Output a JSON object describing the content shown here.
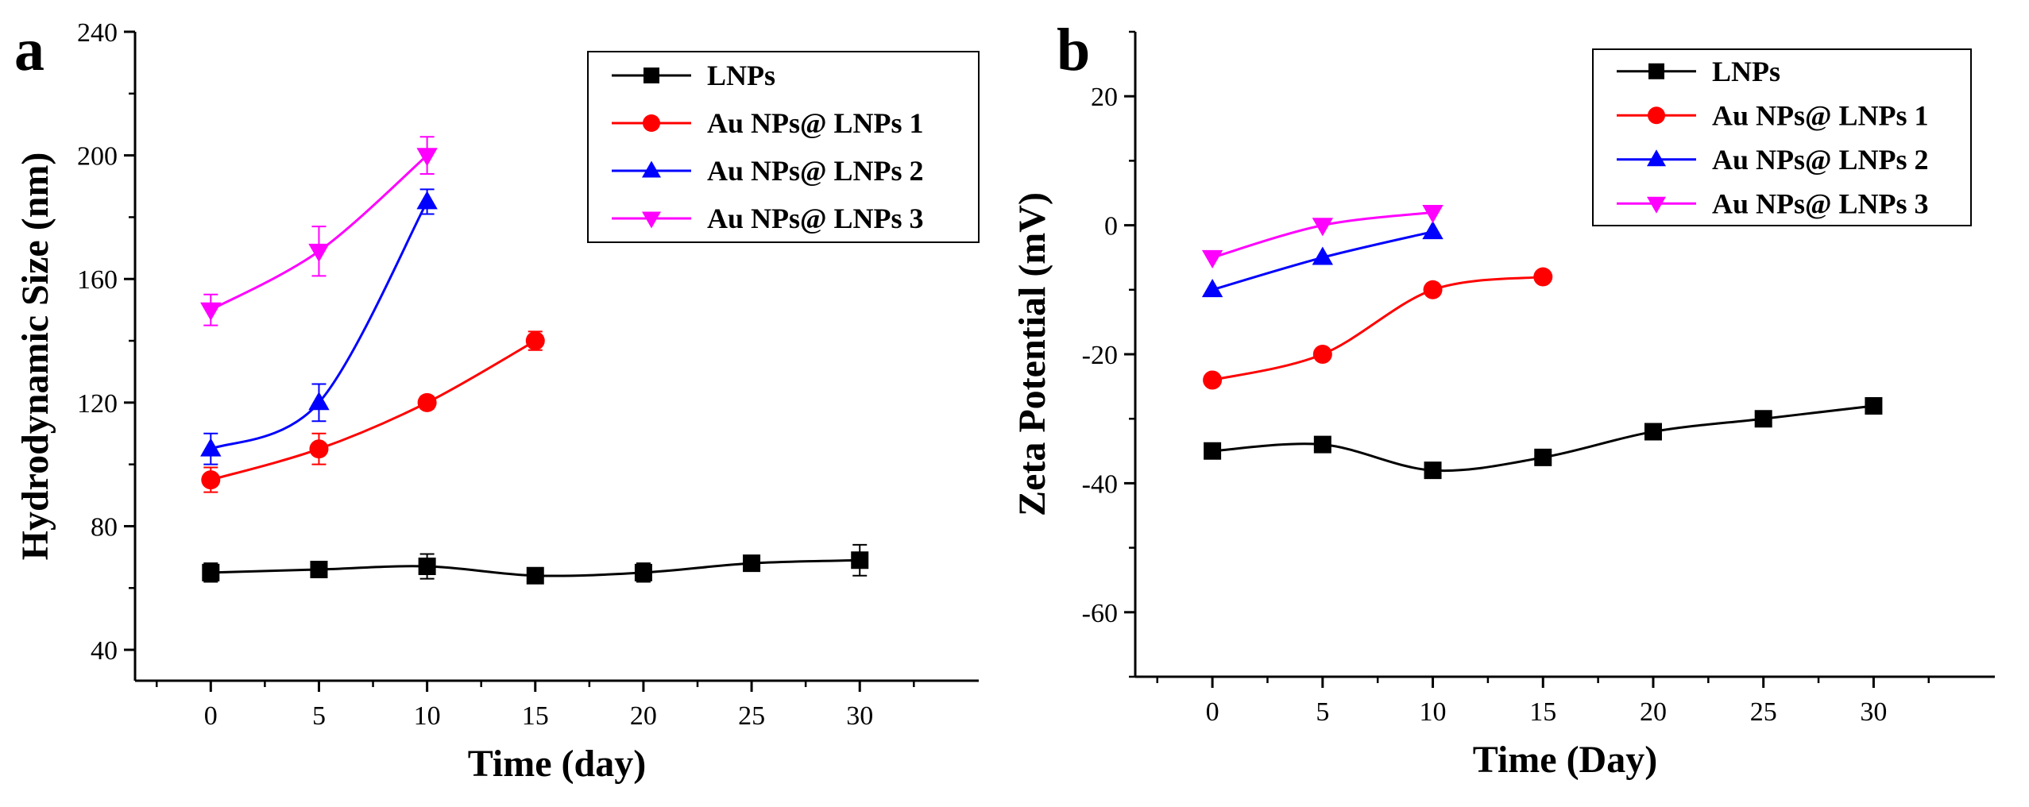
{
  "chart_data": [
    {
      "type": "line",
      "panel_label": "a",
      "xlabel": "Time (day)",
      "ylabel": "Hydrodynamic Size (nm)",
      "xlim": [
        -3.5,
        35.5
      ],
      "ylim": [
        30,
        240
      ],
      "xticks": [
        0,
        5,
        10,
        15,
        20,
        25,
        30
      ],
      "yticks": [
        40,
        80,
        120,
        160,
        200,
        240
      ],
      "legend_position": "top-right",
      "series": [
        {
          "name": "LNPs",
          "color": "#000000",
          "marker": "square",
          "x": [
            0,
            5,
            10,
            15,
            20,
            25,
            30
          ],
          "y": [
            65,
            66,
            67,
            64,
            65,
            68,
            69
          ],
          "err": [
            3,
            2,
            4,
            1,
            3,
            2,
            5
          ]
        },
        {
          "name": "Au NPs@ LNPs 1",
          "color": "#ff0000",
          "marker": "circle",
          "x": [
            0,
            5,
            10,
            15
          ],
          "y": [
            95,
            105,
            120,
            140
          ],
          "err": [
            4,
            5,
            2,
            3
          ]
        },
        {
          "name": "Au NPs@ LNPs 2",
          "color": "#0000ff",
          "marker": "triangle-up",
          "x": [
            0,
            5,
            10
          ],
          "y": [
            105,
            120,
            185
          ],
          "err": [
            5,
            6,
            4
          ]
        },
        {
          "name": "Au NPs@ LNPs 3",
          "color": "#ff00ff",
          "marker": "triangle-down",
          "x": [
            0,
            5,
            10
          ],
          "y": [
            150,
            169,
            200
          ],
          "err": [
            5,
            8,
            6
          ]
        }
      ]
    },
    {
      "type": "line",
      "panel_label": "b",
      "xlabel": "Time (Day)",
      "ylabel": "Zeta Potential (mV)",
      "xlim": [
        -3.5,
        35.5
      ],
      "ylim": [
        -70,
        30
      ],
      "xticks": [
        0,
        5,
        10,
        15,
        20,
        25,
        30
      ],
      "yticks": [
        -60,
        -40,
        -20,
        0,
        20
      ],
      "legend_position": "top-right",
      "series": [
        {
          "name": "LNPs",
          "color": "#000000",
          "marker": "square",
          "x": [
            0,
            5,
            10,
            15,
            20,
            25,
            30
          ],
          "y": [
            -35,
            -34,
            -38,
            -36,
            -32,
            -30,
            -28
          ]
        },
        {
          "name": "Au NPs@ LNPs 1",
          "color": "#ff0000",
          "marker": "circle",
          "x": [
            0,
            5,
            10,
            15
          ],
          "y": [
            -24,
            -20,
            -10,
            -8
          ]
        },
        {
          "name": "Au NPs@ LNPs 2",
          "color": "#0000ff",
          "marker": "triangle-up",
          "x": [
            0,
            5,
            10
          ],
          "y": [
            -10,
            -5,
            -1
          ]
        },
        {
          "name": "Au NPs@ LNPs 3",
          "color": "#ff00ff",
          "marker": "triangle-down",
          "x": [
            0,
            5,
            10
          ],
          "y": [
            -5,
            0,
            2
          ]
        }
      ]
    }
  ]
}
